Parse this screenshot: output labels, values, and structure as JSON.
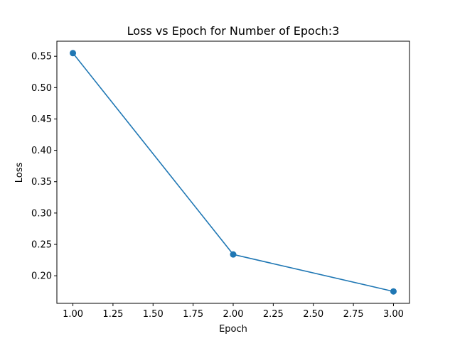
{
  "chart_data": {
    "type": "line",
    "title": "Loss vs Epoch for Number of Epoch:3",
    "xlabel": "Epoch",
    "ylabel": "Loss",
    "xlim": [
      0.9,
      3.1
    ],
    "ylim": [
      0.156,
      0.574
    ],
    "xticks": [
      "1.00",
      "1.25",
      "1.50",
      "1.75",
      "2.00",
      "2.25",
      "2.50",
      "2.75",
      "3.00"
    ],
    "yticks": [
      "0.20",
      "0.25",
      "0.30",
      "0.35",
      "0.40",
      "0.45",
      "0.50",
      "0.55"
    ],
    "grid": false,
    "series": [
      {
        "color": "#1f77b4",
        "marker": "circle",
        "x": [
          1.0,
          2.0,
          3.0
        ],
        "y": [
          0.555,
          0.234,
          0.175
        ]
      }
    ]
  }
}
